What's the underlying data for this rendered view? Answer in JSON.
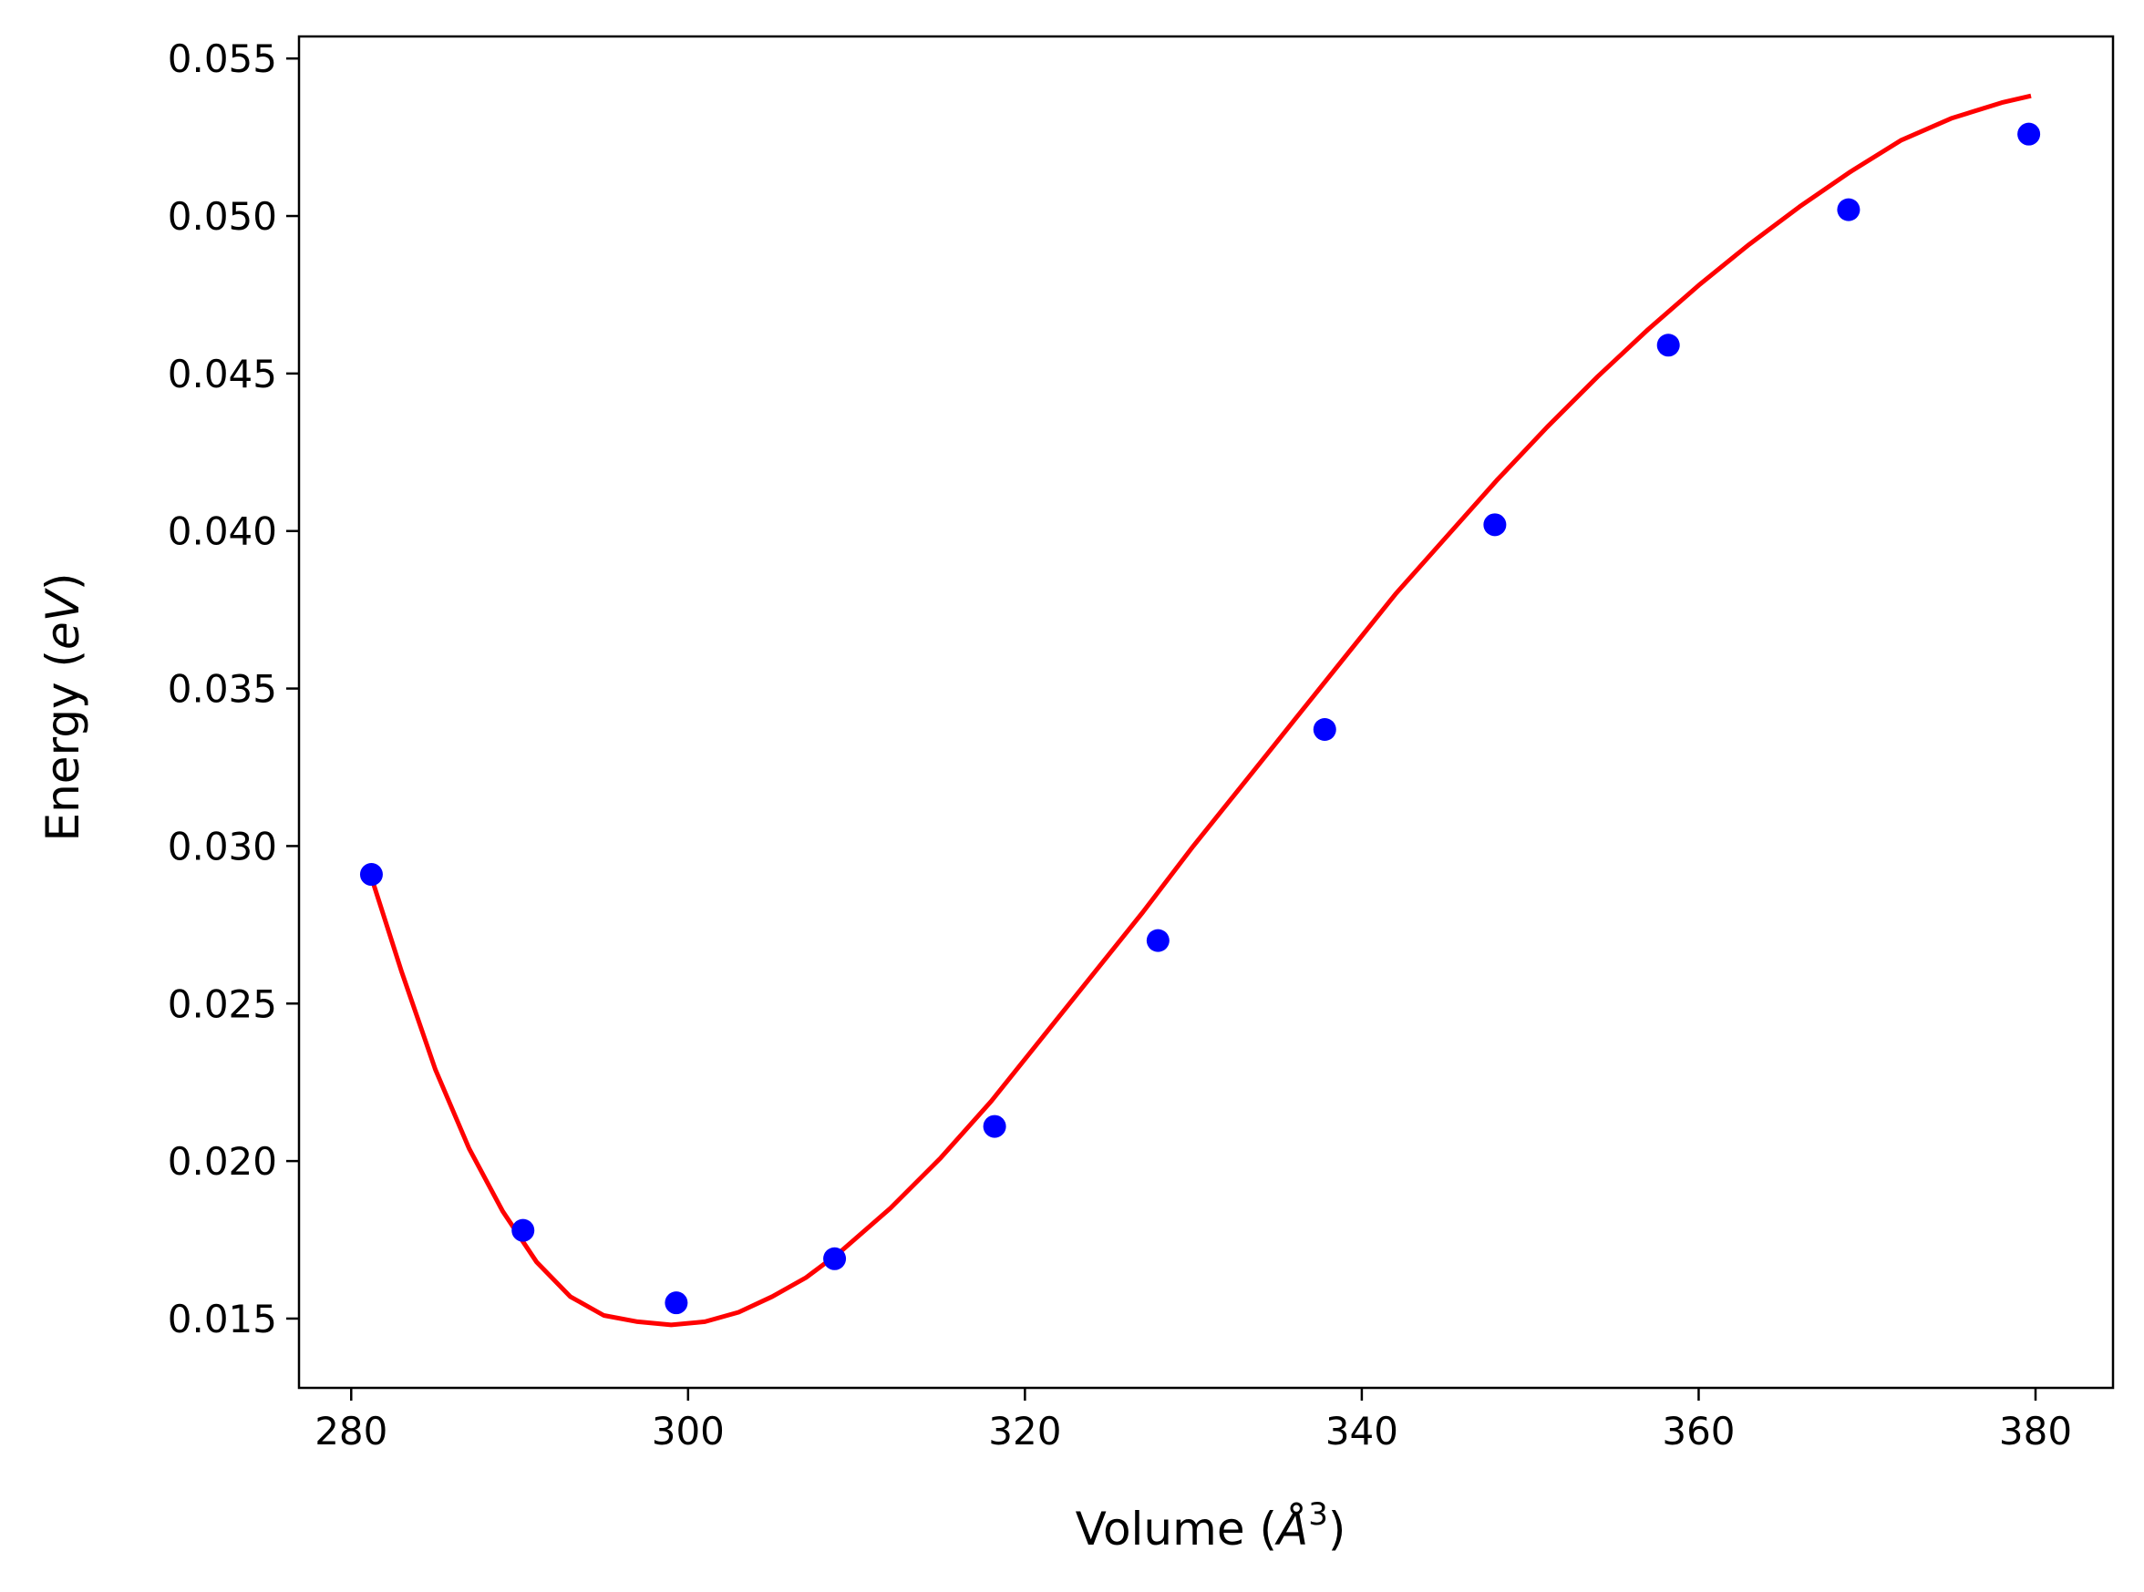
{
  "chart_data": {
    "type": "scatter",
    "title": "",
    "xlabel": "Volume (Å³)",
    "xlabel_parts": {
      "pre": "Volume (",
      "sym": "Å",
      "sup": "3",
      "post": ")"
    },
    "ylabel": "Energy (eV)",
    "ylabel_parts": {
      "pre": "Energy (",
      "sym": "eV",
      "post": ")"
    },
    "xlim": [
      276.9,
      384.6
    ],
    "ylim": [
      0.0128,
      0.0557
    ],
    "xticks": [
      280,
      300,
      320,
      340,
      360,
      380
    ],
    "xtick_labels": [
      "280",
      "300",
      "320",
      "340",
      "360",
      "380"
    ],
    "yticks": [
      0.015,
      0.02,
      0.025,
      0.03,
      0.035,
      0.04,
      0.045,
      0.05,
      0.055
    ],
    "ytick_labels": [
      "0.015",
      "0.020",
      "0.025",
      "0.030",
      "0.035",
      "0.040",
      "0.045",
      "0.050",
      "0.055"
    ],
    "grid": false,
    "series": [
      {
        "kind": "points",
        "color": "#0000ff",
        "x": [
          281.2,
          290.2,
          299.3,
          308.7,
          318.2,
          327.9,
          337.8,
          347.9,
          358.2,
          368.9,
          379.6
        ],
        "y": [
          0.0291,
          0.0178,
          0.0155,
          0.0169,
          0.0211,
          0.027,
          0.0337,
          0.0402,
          0.0459,
          0.0502,
          0.0526
        ]
      },
      {
        "kind": "line",
        "color": "#ff0000",
        "x": [
          281.2,
          283,
          285,
          287,
          289,
          291,
          293,
          295,
          297,
          299,
          301,
          303,
          305,
          307,
          309,
          312,
          315,
          318,
          321,
          324,
          327,
          330,
          333,
          336,
          339,
          342,
          345,
          348,
          351,
          354,
          357,
          360,
          363,
          366,
          369,
          372,
          375,
          378,
          379.6
        ],
        "y": [
          0.029,
          0.026,
          0.0229,
          0.0204,
          0.0184,
          0.0168,
          0.0157,
          0.0151,
          0.0149,
          0.0148,
          0.0149,
          0.0152,
          0.0157,
          0.0163,
          0.0171,
          0.0185,
          0.0201,
          0.0219,
          0.0239,
          0.0259,
          0.0279,
          0.03,
          0.032,
          0.034,
          0.036,
          0.038,
          0.0398,
          0.0416,
          0.0433,
          0.0449,
          0.0464,
          0.0478,
          0.0491,
          0.0503,
          0.0514,
          0.0524,
          0.0531,
          0.0536,
          0.0538
        ]
      }
    ]
  }
}
